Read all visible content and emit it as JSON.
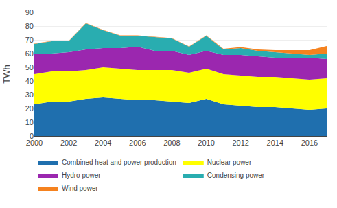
{
  "chart_data": {
    "type": "area",
    "stacked": true,
    "x": [
      2000,
      2001,
      2002,
      2003,
      2004,
      2005,
      2006,
      2007,
      2008,
      2009,
      2010,
      2011,
      2012,
      2013,
      2014,
      2015,
      2016,
      2017
    ],
    "series": [
      {
        "name": "Combined heat and power production",
        "color": "#1F6FAE",
        "values": [
          23,
          25,
          25,
          27,
          28,
          27,
          26,
          26,
          25,
          24,
          27,
          23,
          22,
          21,
          21,
          20,
          19,
          20
        ]
      },
      {
        "name": "Nuclear power",
        "color": "#FFFF00",
        "values": [
          22,
          22,
          22,
          21,
          22,
          22,
          22,
          22,
          23,
          22,
          22,
          22,
          22,
          22,
          22,
          22,
          22,
          22
        ]
      },
      {
        "name": "Hydro power",
        "color": "#9B27AF",
        "values": [
          15,
          13,
          14,
          15,
          14,
          15,
          17,
          14,
          14,
          13,
          13,
          14,
          15,
          15,
          14,
          15,
          16,
          14
        ]
      },
      {
        "name": "Condensing power",
        "color": "#29ADB0",
        "values": [
          7,
          9,
          8,
          19,
          13,
          9,
          8,
          10,
          9,
          6,
          11,
          4,
          5,
          4,
          4,
          3,
          2,
          4
        ]
      },
      {
        "name": "Wind power",
        "color": "#F5821F",
        "values": [
          0.2,
          0.2,
          0.2,
          0.2,
          0.3,
          0.3,
          0.3,
          0.3,
          0.3,
          0.3,
          0.3,
          0.5,
          0.7,
          1.0,
          1.5,
          2.5,
          3.5,
          5.5
        ]
      }
    ],
    "ylabel": "TWh",
    "ylim": [
      0,
      90
    ],
    "yticks": [
      0,
      10,
      20,
      30,
      40,
      50,
      60,
      70,
      80,
      90
    ],
    "xlim": [
      2000,
      2017
    ],
    "xticks": [
      2000,
      2002,
      2004,
      2006,
      2008,
      2010,
      2012,
      2014,
      2016
    ],
    "grid": true,
    "legend": "bottom"
  }
}
